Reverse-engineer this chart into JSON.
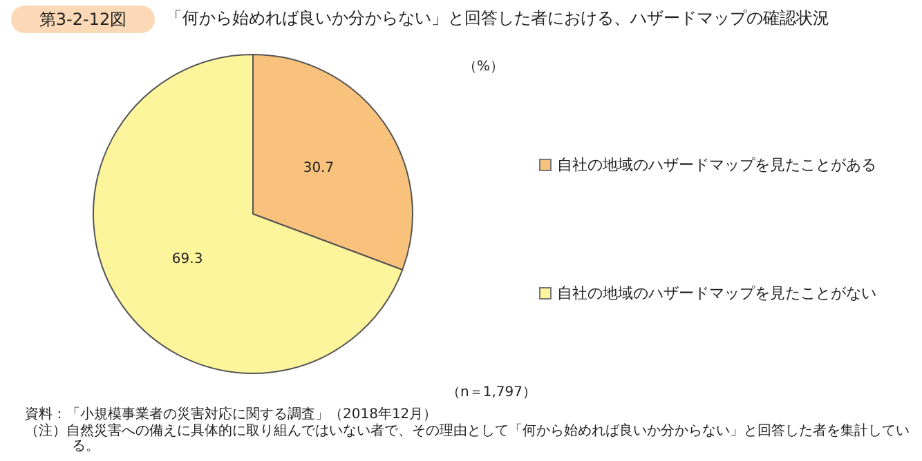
{
  "chart_data": {
    "type": "pie",
    "title": "「何から始めれば良いか分からない」と回答した者における、ハザードマップの確認状況",
    "categories": [
      "自社の地域のハザードマップを見たことがある",
      "自社の地域のハザードマップを見たことがない"
    ],
    "values": [
      30.7,
      69.3
    ],
    "colors": [
      "#f9c27c",
      "#fdf59c"
    ],
    "data_labels": true,
    "legend": "right",
    "annotations": [
      "第3-2-12図",
      "（%）",
      "（n＝1,797）",
      "資料：「小規模事業者の災害対応に関する調査」（2018年12月）",
      "（注）自然災害への備えに具体的に取り組んではいない者で、その理由として「何から始めれば良いか分からない」と回答した者を集計している。"
    ]
  }
}
